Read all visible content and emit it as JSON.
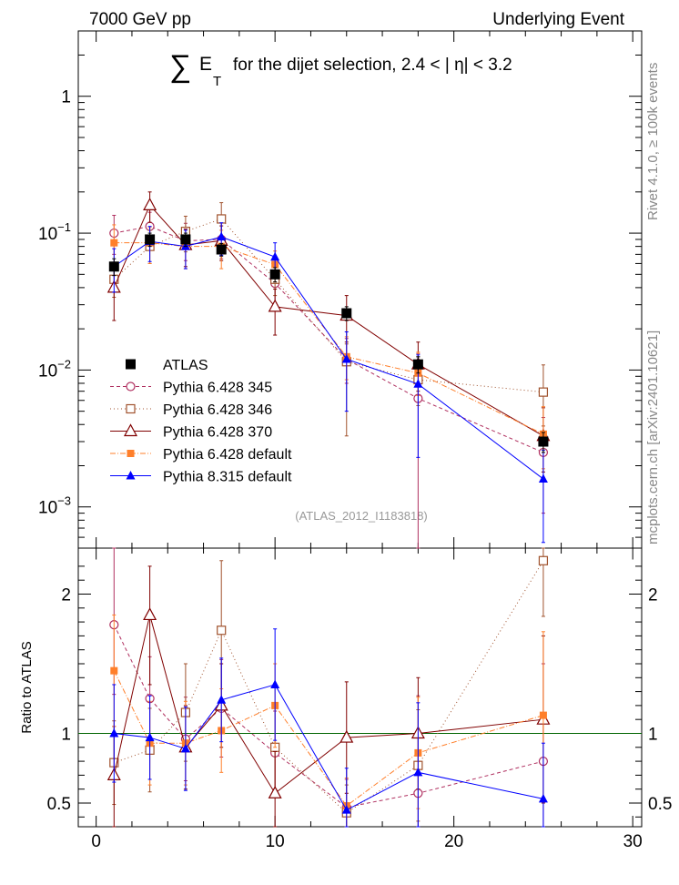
{
  "header": {
    "energy_label": "7000 GeV pp",
    "process_label": "Underlying Event",
    "side_label_top": "Rivet 4.1.0, ≥ 100k events",
    "side_label_bottom": "mcplots.cern.ch [arXiv:2401.10621]"
  },
  "title": {
    "sum_symbol": "∑",
    "variable": "E",
    "subscript": "T",
    "text": "for the dijet selection, 2.4 < |  η| < 3.2"
  },
  "analysis_label": "(ATLAS_2012_I1183818)",
  "colors": {
    "frame": "#000000",
    "ratio_line": "#006400",
    "ref_marker": "#000000"
  },
  "chart_data": [
    {
      "type": "scatter",
      "panel": "main",
      "yscale": "log",
      "xlim": [
        -1,
        30.5
      ],
      "ylim": [
        0.0005,
        3
      ],
      "x_ticks": [
        0,
        10,
        20,
        30
      ],
      "y_tick_labels": [
        {
          "value": 1,
          "base": "1",
          "exp": ""
        },
        {
          "value": 0.1,
          "base": "10",
          "exp": "−1"
        },
        {
          "value": 0.01,
          "base": "10",
          "exp": "−2"
        },
        {
          "value": 0.001,
          "base": "10",
          "exp": "−3"
        }
      ],
      "x": [
        1,
        3,
        5,
        7,
        10,
        14,
        18,
        25
      ],
      "series": [
        {
          "name": "ATLAS",
          "color": "#000000",
          "marker": "square-filled",
          "dash": "none",
          "values": [
            0.057,
            0.09,
            0.09,
            0.076,
            0.05,
            0.026,
            0.011,
            0.003
          ],
          "err_up": [
            0.008,
            0.01,
            0.01,
            0.008,
            0.006,
            0.003,
            0.0015,
            0.0005
          ],
          "err_dn": [
            0.008,
            0.01,
            0.01,
            0.008,
            0.006,
            0.003,
            0.0015,
            0.0005
          ]
        },
        {
          "name": "Pythia 6.428 345",
          "color": "#b03060",
          "marker": "circle-open",
          "dash": "4,3",
          "values": [
            0.1,
            0.112,
            0.088,
            0.09,
            0.043,
            0.012,
            0.0062,
            0.0025
          ],
          "err_up": [
            0.035,
            0.03,
            0.03,
            0.03,
            0.015,
            0.005,
            0.007,
            0.002
          ],
          "err_dn": [
            0.03,
            0.025,
            0.025,
            0.025,
            0.012,
            0.004,
            0.0058,
            0.0016
          ]
        },
        {
          "name": "Pythia 6.428 346",
          "color": "#a0522d",
          "marker": "square-open",
          "dash": "1,3",
          "values": [
            0.046,
            0.08,
            0.103,
            0.127,
            0.046,
            0.0115,
            0.0085,
            0.0069
          ],
          "err_up": [
            0.015,
            0.025,
            0.03,
            0.04,
            0.012,
            0.004,
            0.004,
            0.004
          ],
          "err_dn": [
            0.012,
            0.02,
            0.03,
            0.04,
            0.011,
            0.0082,
            0.003,
            0.003
          ]
        },
        {
          "name": "Pythia 6.428 370",
          "color": "#800000",
          "marker": "triangle-open",
          "dash": "none",
          "values": [
            0.04,
            0.16,
            0.082,
            0.088,
            0.029,
            0.025,
            0.011,
            0.0033
          ],
          "err_up": [
            0.02,
            0.04,
            0.025,
            0.025,
            0.01,
            0.01,
            0.005,
            0.002
          ],
          "err_dn": [
            0.017,
            0.04,
            0.025,
            0.025,
            0.011,
            0.009,
            0.004,
            0.0015
          ]
        },
        {
          "name": "Pythia 6.428 default",
          "color": "#ff7f2a",
          "marker": "square-filled-small",
          "dash": "6,2,1,2",
          "values": [
            0.085,
            0.085,
            0.08,
            0.08,
            0.059,
            0.0125,
            0.0095,
            0.0034
          ],
          "err_up": [
            0.03,
            0.025,
            0.025,
            0.025,
            0.015,
            0.005,
            0.004,
            0.002
          ],
          "err_dn": [
            0.025,
            0.025,
            0.025,
            0.025,
            0.015,
            0.004,
            0.003,
            0.0015
          ]
        },
        {
          "name": "Pythia 8.315 default",
          "color": "#0000ff",
          "marker": "triangle-filled",
          "dash": "none",
          "values": [
            0.057,
            0.087,
            0.08,
            0.094,
            0.067,
            0.012,
            0.0079,
            0.0016
          ],
          "err_up": [
            0.02,
            0.025,
            0.025,
            0.025,
            0.018,
            0.007,
            0.005,
            0.001
          ],
          "err_dn": [
            0.02,
            0.025,
            0.025,
            0.025,
            0.018,
            0.007,
            0.0056,
            0.00105
          ]
        }
      ]
    },
    {
      "type": "scatter",
      "panel": "ratio",
      "yscale": "linear",
      "ylabel": "Ratio to ATLAS",
      "xlim": [
        -1,
        30.5
      ],
      "ylim": [
        0.33,
        2.33
      ],
      "x_ticks": [
        0,
        10,
        20,
        30
      ],
      "y_ticks": [
        0.5,
        1,
        2
      ],
      "y_tick_labels": [
        "0.5",
        "1",
        "2"
      ],
      "reference_line": 1,
      "x": [
        1,
        3,
        5,
        7,
        10,
        14,
        18,
        25
      ],
      "series": [
        {
          "name": "ATLAS",
          "color": "#000000",
          "band": true,
          "values": [
            1,
            1,
            1,
            1,
            1,
            1,
            1,
            1
          ],
          "err_up": [
            0.14,
            0.11,
            0.11,
            0.1,
            0.12,
            0.12,
            0.13,
            0.15
          ],
          "err_dn": [
            0.14,
            0.11,
            0.11,
            0.1,
            0.12,
            0.12,
            0.13,
            0.15
          ]
        },
        {
          "name": "Pythia 6.428 345",
          "color": "#b03060",
          "marker": "circle-open",
          "dash": "4,3",
          "values": [
            1.78,
            1.25,
            0.96,
            1.18,
            0.86,
            0.47,
            0.57,
            0.8
          ],
          "err_up": [
            0.55,
            0.3,
            0.3,
            0.35,
            0.3,
            0.2,
            0.7,
            0.7
          ],
          "err_dn": [
            0.5,
            0.3,
            0.3,
            0.35,
            0.3,
            0.2,
            0.5,
            0.6
          ]
        },
        {
          "name": "Pythia 6.428 346",
          "color": "#a0522d",
          "marker": "square-open",
          "dash": "1,3",
          "values": [
            0.79,
            0.88,
            1.15,
            1.74,
            0.9,
            0.43,
            0.77,
            2.24
          ],
          "err_up": [
            0.3,
            0.3,
            0.35,
            0.5,
            0.3,
            0.2,
            0.4,
            0.4
          ],
          "err_dn": [
            0.3,
            0.3,
            0.35,
            0.5,
            0.3,
            0.2,
            0.4,
            0.4
          ]
        },
        {
          "name": "Pythia 6.428 370",
          "color": "#800000",
          "marker": "triangle-open",
          "dash": "none",
          "values": [
            0.7,
            1.85,
            0.9,
            1.2,
            0.57,
            0.97,
            1.0,
            1.1
          ],
          "err_up": [
            0.35,
            0.35,
            0.3,
            0.3,
            0.3,
            0.4,
            0.4,
            0.6
          ],
          "err_dn": [
            0.4,
            0.5,
            0.3,
            0.3,
            0.3,
            0.4,
            0.4,
            0.6
          ]
        },
        {
          "name": "Pythia 6.428 default",
          "color": "#ff7f2a",
          "marker": "square-filled-small",
          "dash": "6,2,1,2",
          "values": [
            1.45,
            0.93,
            0.93,
            1.02,
            1.2,
            0.48,
            0.86,
            1.13
          ],
          "err_up": [
            0.4,
            0.3,
            0.3,
            0.3,
            0.3,
            0.2,
            0.4,
            0.6
          ],
          "err_dn": [
            0.4,
            0.3,
            0.3,
            0.3,
            0.3,
            0.2,
            0.4,
            0.6
          ]
        },
        {
          "name": "Pythia 8.315 default",
          "color": "#0000ff",
          "marker": "triangle-filled",
          "dash": "none",
          "values": [
            1.0,
            0.97,
            0.89,
            1.24,
            1.35,
            0.45,
            0.72,
            0.53
          ],
          "err_up": [
            0.35,
            0.3,
            0.3,
            0.3,
            0.4,
            0.3,
            0.5,
            0.4
          ],
          "err_dn": [
            0.35,
            0.3,
            0.3,
            0.3,
            0.4,
            0.3,
            0.5,
            0.4
          ]
        }
      ]
    }
  ]
}
